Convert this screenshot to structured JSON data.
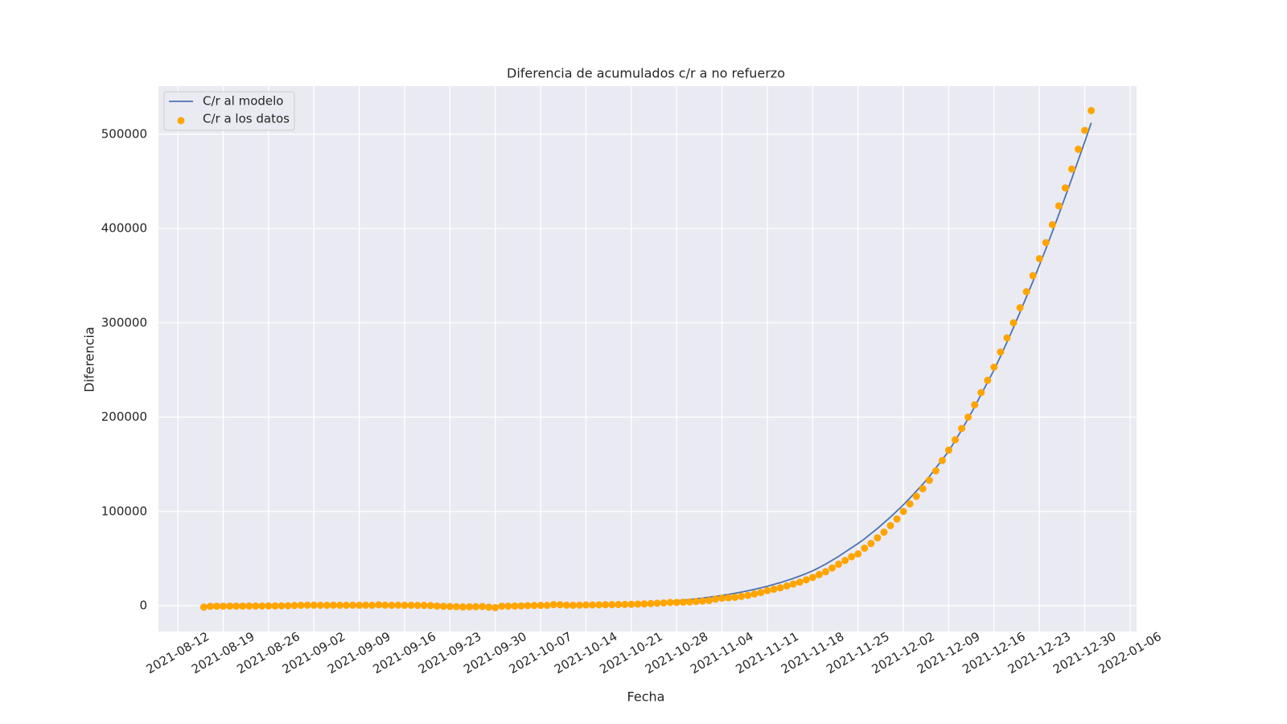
{
  "chart_data": {
    "type": "line",
    "title": "Diferencia de acumulados c/r a no refuerzo",
    "x_label": "Fecha",
    "y_label": "Diferencia",
    "x": [
      "2021-08-16",
      "2021-08-17",
      "2021-08-18",
      "2021-08-19",
      "2021-08-20",
      "2021-08-21",
      "2021-08-22",
      "2021-08-23",
      "2021-08-24",
      "2021-08-25",
      "2021-08-26",
      "2021-08-27",
      "2021-08-28",
      "2021-08-29",
      "2021-08-30",
      "2021-08-31",
      "2021-09-01",
      "2021-09-02",
      "2021-09-03",
      "2021-09-04",
      "2021-09-05",
      "2021-09-06",
      "2021-09-07",
      "2021-09-08",
      "2021-09-09",
      "2021-09-10",
      "2021-09-11",
      "2021-09-12",
      "2021-09-13",
      "2021-09-14",
      "2021-09-15",
      "2021-09-16",
      "2021-09-17",
      "2021-09-18",
      "2021-09-19",
      "2021-09-20",
      "2021-09-21",
      "2021-09-22",
      "2021-09-23",
      "2021-09-24",
      "2021-09-25",
      "2021-09-26",
      "2021-09-27",
      "2021-09-28",
      "2021-09-29",
      "2021-09-30",
      "2021-10-01",
      "2021-10-02",
      "2021-10-03",
      "2021-10-04",
      "2021-10-05",
      "2021-10-06",
      "2021-10-07",
      "2021-10-08",
      "2021-10-09",
      "2021-10-10",
      "2021-10-11",
      "2021-10-12",
      "2021-10-13",
      "2021-10-14",
      "2021-10-15",
      "2021-10-16",
      "2021-10-17",
      "2021-10-18",
      "2021-10-19",
      "2021-10-20",
      "2021-10-21",
      "2021-10-22",
      "2021-10-23",
      "2021-10-24",
      "2021-10-25",
      "2021-10-26",
      "2021-10-27",
      "2021-10-28",
      "2021-10-29",
      "2021-10-30",
      "2021-10-31",
      "2021-11-01",
      "2021-11-02",
      "2021-11-03",
      "2021-11-04",
      "2021-11-05",
      "2021-11-06",
      "2021-11-07",
      "2021-11-08",
      "2021-11-09",
      "2021-11-10",
      "2021-11-11",
      "2021-11-12",
      "2021-11-13",
      "2021-11-14",
      "2021-11-15",
      "2021-11-16",
      "2021-11-17",
      "2021-11-18",
      "2021-11-19",
      "2021-11-20",
      "2021-11-21",
      "2021-11-22",
      "2021-11-23",
      "2021-11-24",
      "2021-11-25",
      "2021-11-26",
      "2021-11-27",
      "2021-11-28",
      "2021-11-29",
      "2021-11-30",
      "2021-12-01",
      "2021-12-02",
      "2021-12-03",
      "2021-12-04",
      "2021-12-05",
      "2021-12-06",
      "2021-12-07",
      "2021-12-08",
      "2021-12-09",
      "2021-12-10",
      "2021-12-11",
      "2021-12-12",
      "2021-12-13",
      "2021-12-14",
      "2021-12-15",
      "2021-12-16",
      "2021-12-17",
      "2021-12-18",
      "2021-12-19",
      "2021-12-20",
      "2021-12-21",
      "2021-12-22",
      "2021-12-23",
      "2021-12-24",
      "2021-12-25",
      "2021-12-26",
      "2021-12-27",
      "2021-12-28",
      "2021-12-29",
      "2021-12-30",
      "2021-12-31"
    ],
    "series": [
      {
        "name": "C/r al modelo",
        "type": "line",
        "color": "#4c72b0",
        "values": [
          0,
          0,
          0,
          0,
          0,
          0,
          0,
          0,
          0,
          0,
          0,
          0,
          0,
          0,
          0,
          0,
          0,
          0,
          0,
          0,
          0,
          0,
          0,
          0,
          0,
          0,
          0,
          0,
          0,
          0,
          -100,
          -200,
          -300,
          -400,
          -500,
          -600,
          -700,
          -700,
          -800,
          -800,
          -800,
          -800,
          -700,
          -700,
          -600,
          -500,
          -400,
          -300,
          -200,
          -100,
          0,
          100,
          200,
          300,
          400,
          500,
          600,
          700,
          800,
          900,
          1000,
          1200,
          1400,
          1600,
          1800,
          2000,
          2300,
          2600,
          2900,
          3300,
          3700,
          4200,
          4700,
          5300,
          5900,
          6600,
          7300,
          8100,
          9000,
          9900,
          10900,
          12000,
          13200,
          14500,
          15900,
          17400,
          19000,
          20700,
          22600,
          24600,
          26700,
          29000,
          31500,
          34200,
          37000,
          40500,
          44200,
          48200,
          52400,
          56900,
          61500,
          66000,
          71000,
          76500,
          82000,
          88000,
          94000,
          100500,
          107000,
          114000,
          121500,
          129000,
          137000,
          146000,
          155000,
          164000,
          175000,
          186500,
          198500,
          211000,
          224000,
          237000,
          250000,
          264500,
          279500,
          295000,
          311000,
          327500,
          344000,
          361000,
          378500,
          396500,
          415000,
          434000,
          453000,
          472500,
          492000,
          512000
        ]
      },
      {
        "name": "C/r a los datos",
        "type": "scatter",
        "color": "#ffa500",
        "values": [
          -1500,
          -600,
          -500,
          -500,
          -400,
          -400,
          -400,
          -300,
          -300,
          -300,
          -200,
          -200,
          -100,
          0,
          300,
          500,
          600,
          600,
          500,
          500,
          600,
          500,
          500,
          600,
          500,
          600,
          500,
          1000,
          600,
          500,
          600,
          500,
          500,
          400,
          400,
          200,
          -300,
          -600,
          -800,
          -1000,
          -1200,
          -1100,
          -1000,
          -800,
          -1500,
          -2000,
          -500,
          -400,
          -300,
          -200,
          100,
          300,
          400,
          400,
          1200,
          1100,
          600,
          500,
          600,
          800,
          900,
          1000,
          1100,
          1200,
          1300,
          1400,
          1500,
          1800,
          2000,
          2300,
          2700,
          3000,
          3500,
          3500,
          3800,
          4000,
          4500,
          5000,
          5500,
          7000,
          8000,
          8500,
          9000,
          10000,
          11000,
          12500,
          14000,
          16000,
          17500,
          19000,
          21000,
          23000,
          25000,
          27500,
          30000,
          33000,
          36000,
          40000,
          44000,
          48000,
          52000,
          55000,
          61000,
          66000,
          72000,
          78000,
          85000,
          92000,
          100000,
          108000,
          116000,
          124000,
          133000,
          143000,
          154000,
          165000,
          176000,
          188000,
          200000,
          213000,
          226000,
          239000,
          253000,
          269000,
          284000,
          300000,
          316000,
          333000,
          350000,
          368000,
          385000,
          404000,
          424000,
          443000,
          463000,
          484000,
          504000,
          525000
        ]
      }
    ],
    "xlim": [
      "2021-08-09",
      "2022-01-07"
    ],
    "xticks": [
      "2021-08-12",
      "2021-08-19",
      "2021-08-26",
      "2021-09-02",
      "2021-09-09",
      "2021-09-16",
      "2021-09-23",
      "2021-09-30",
      "2021-10-07",
      "2021-10-14",
      "2021-10-21",
      "2021-10-28",
      "2021-11-04",
      "2021-11-11",
      "2021-11-18",
      "2021-11-25",
      "2021-12-02",
      "2021-12-09",
      "2021-12-16",
      "2021-12-23",
      "2021-12-30",
      "2022-01-06"
    ],
    "ylim": [
      -27300,
      551000
    ],
    "yticks": [
      0,
      100000,
      200000,
      300000,
      400000,
      500000
    ],
    "grid": true,
    "legend": "upper left"
  }
}
